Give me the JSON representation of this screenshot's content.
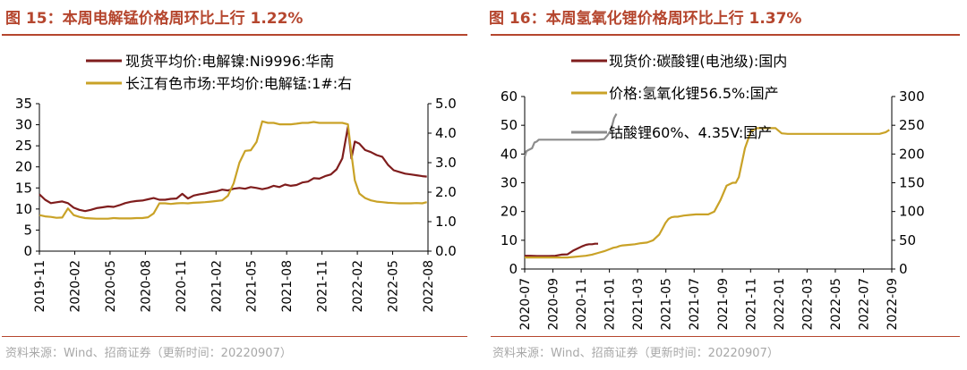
{
  "colors": {
    "title": "#b5462e",
    "source": "#a8a8a8",
    "axis": "#000000"
  },
  "panels": [
    {
      "title": "图 15：本周电解锰价格周环比上行 1.22%",
      "source": "资料来源：Wind、招商证券（更新时间：20220907）"
    },
    {
      "title": "图 16：本周氢氧化锂价格周环比上行 1.37%",
      "source": "资料来源：Wind、招商证券（更新时间：20220907）"
    }
  ],
  "chart_data": [
    {
      "type": "line",
      "xlabels": [
        "2019-11",
        "2020-02",
        "2020-05",
        "2020-08",
        "2020-11",
        "2021-02",
        "2021-05",
        "2021-08",
        "2021-11",
        "2022-02",
        "2022-05",
        "2022-08"
      ],
      "ylim_left": [
        0,
        35
      ],
      "yticks_left": [
        "0",
        "5",
        "10",
        "15",
        "20",
        "25",
        "30",
        "35"
      ],
      "ylim_right": [
        0,
        5
      ],
      "yticks_right": [
        "0.0",
        "1.0",
        "2.0",
        "3.0",
        "4.0",
        "5.0"
      ],
      "legend_position": "top",
      "series": [
        {
          "name": "现货平均价:电解镍:Ni9996:华南",
          "axis": "left",
          "color": "#7f1d1d",
          "x": [
            0,
            0.5,
            1,
            1.5,
            2,
            2.5,
            3,
            3.5,
            4,
            4.5,
            5,
            5.5,
            6,
            6.5,
            7,
            7.5,
            8,
            8.5,
            9,
            9.5,
            10,
            10.5,
            11,
            11.5,
            12,
            12.5,
            13,
            13.5,
            14,
            14.5,
            15,
            15.5,
            16,
            16.5,
            17,
            17.5,
            18,
            18.5,
            19,
            19.5,
            20,
            20.5,
            21,
            21.5,
            22,
            22.5,
            23,
            23.5,
            24,
            24.5,
            25,
            25.5,
            26,
            26.5,
            27,
            27.3,
            27.6,
            28,
            28.5,
            29,
            29.5,
            30,
            30.5,
            31,
            31.5,
            32,
            32.5,
            33,
            33.5,
            33.9
          ],
          "y": [
            13.5,
            12.2,
            11.4,
            11.6,
            11.8,
            11.4,
            10.3,
            9.8,
            9.5,
            9.8,
            10.2,
            10.4,
            10.6,
            10.5,
            10.9,
            11.4,
            11.7,
            11.9,
            12.0,
            12.3,
            12.6,
            12.2,
            12.2,
            12.4,
            12.5,
            13.6,
            12.5,
            13.2,
            13.5,
            13.7,
            14.0,
            14.2,
            14.6,
            14.4,
            14.8,
            15.0,
            14.8,
            15.2,
            15.0,
            14.7,
            15.0,
            15.5,
            15.2,
            15.8,
            15.5,
            15.7,
            16.3,
            16.5,
            17.3,
            17.2,
            17.8,
            18.2,
            19.4,
            22.0,
            29.5,
            22.0,
            26.0,
            25.5,
            24.0,
            23.5,
            22.8,
            22.4,
            20.5,
            19.2,
            18.8,
            18.4,
            18.2,
            18.0,
            17.8,
            17.7
          ]
        },
        {
          "name": "长江有色市场:平均价:电解锰:1#:右",
          "axis": "right",
          "color": "#c9a227",
          "x": [
            0,
            0.5,
            1,
            1.5,
            2,
            2.5,
            3,
            3.5,
            4,
            4.5,
            5,
            5.5,
            6,
            6.5,
            7,
            7.5,
            8,
            8.5,
            9,
            9.5,
            10,
            10.5,
            11,
            11.5,
            12,
            12.5,
            13,
            13.5,
            14,
            14.5,
            15,
            15.5,
            16,
            16.5,
            17,
            17.5,
            18,
            18.5,
            19,
            19.5,
            20,
            20.5,
            21,
            21.5,
            22,
            22.5,
            23,
            23.5,
            24,
            24.5,
            25,
            25.5,
            26,
            26.5,
            27,
            27.3,
            27.6,
            28,
            28.5,
            29,
            29.5,
            30,
            30.5,
            31,
            31.5,
            32,
            32.5,
            33,
            33.5,
            33.9
          ],
          "y": [
            1.22,
            1.18,
            1.16,
            1.13,
            1.14,
            1.45,
            1.22,
            1.16,
            1.12,
            1.11,
            1.1,
            1.1,
            1.1,
            1.12,
            1.11,
            1.11,
            1.11,
            1.12,
            1.12,
            1.15,
            1.28,
            1.62,
            1.62,
            1.6,
            1.62,
            1.63,
            1.62,
            1.64,
            1.65,
            1.66,
            1.68,
            1.7,
            1.72,
            1.88,
            2.3,
            3.0,
            3.4,
            3.42,
            3.7,
            4.4,
            4.35,
            4.35,
            4.3,
            4.3,
            4.3,
            4.32,
            4.35,
            4.35,
            4.38,
            4.35,
            4.35,
            4.35,
            4.35,
            4.35,
            4.3,
            3.3,
            2.4,
            1.95,
            1.8,
            1.72,
            1.68,
            1.66,
            1.64,
            1.63,
            1.62,
            1.62,
            1.62,
            1.63,
            1.62,
            1.66
          ]
        }
      ]
    },
    {
      "type": "line",
      "xlabels": [
        "2020-07",
        "2020-09",
        "2020-11",
        "2021-01",
        "2021-03",
        "2021-05",
        "2021-07",
        "2021-09",
        "2021-11",
        "2022-01",
        "2022-03",
        "2022-05",
        "2022-07",
        "2022-09"
      ],
      "ylim_left": [
        0,
        60
      ],
      "yticks_left": [
        "0",
        "10",
        "20",
        "30",
        "40",
        "50",
        "60"
      ],
      "ylim_right": [
        0,
        300
      ],
      "yticks_right": [
        "0",
        "50",
        "100",
        "150",
        "200",
        "250",
        "300"
      ],
      "legend_position": "top",
      "series": [
        {
          "name": "现货价:碳酸锂(电池级):国内",
          "axis": "left",
          "color": "#7f1d1d",
          "x": [
            0,
            1,
            2,
            3,
            4,
            5,
            6,
            7,
            8,
            8.5,
            9,
            9.5,
            10,
            10.5,
            11,
            11.5,
            12
          ],
          "y": [
            4.6,
            4.6,
            4.5,
            4.5,
            4.5,
            4.6,
            5.0,
            5.1,
            6.5,
            7.0,
            7.5,
            8.0,
            8.4,
            8.6,
            8.6,
            8.8,
            8.8
          ]
        },
        {
          "name": "价格:氢氧化锂56.5%:国产",
          "axis": "right",
          "color": "#c9a227",
          "x": [
            0,
            2,
            4,
            6,
            7,
            8,
            9,
            10,
            11,
            12,
            13,
            14,
            14.5,
            15,
            15.5,
            16,
            17,
            18,
            19,
            20,
            20.5,
            21,
            21.5,
            22,
            22.5,
            23,
            23.5,
            24,
            24.5,
            25,
            25.5,
            26,
            27,
            28,
            29,
            30,
            31,
            32,
            33,
            34,
            34.5,
            35,
            35.5,
            36,
            37,
            38,
            39,
            40,
            41,
            42,
            43,
            44,
            45,
            46,
            47,
            48,
            49,
            50,
            51,
            52,
            53,
            54,
            55,
            56,
            57,
            58,
            59,
            59.6
          ],
          "y": [
            20,
            20,
            20,
            20,
            20,
            21,
            22,
            23,
            25,
            28,
            31,
            35,
            37,
            38,
            40,
            41,
            42,
            43,
            45,
            46,
            48,
            50,
            55,
            60,
            70,
            80,
            87,
            90,
            91,
            91,
            92,
            93,
            94,
            95,
            95,
            95,
            100,
            120,
            145,
            150,
            150,
            160,
            185,
            210,
            240,
            245,
            245,
            245,
            245,
            236,
            235,
            235,
            235,
            235,
            235,
            235,
            235,
            235,
            235,
            235,
            235,
            235,
            235,
            235,
            235,
            235,
            238,
            242
          ]
        },
        {
          "name": "钴酸锂60%、4.35V:国产",
          "axis": "right",
          "color": "#8c8c8c",
          "x": [
            0,
            0.3,
            0.8,
            1.2,
            1.6,
            2,
            2.3,
            3,
            4,
            5,
            6,
            7,
            8,
            9,
            10,
            11,
            12,
            13,
            13.5,
            14,
            14.3,
            14.6,
            15
          ],
          "y": [
            195,
            205,
            208,
            210,
            220,
            222,
            225,
            225,
            225,
            225,
            225,
            225,
            225,
            225,
            225,
            225,
            225,
            226,
            232,
            240,
            250,
            262,
            270
          ]
        }
      ]
    }
  ]
}
